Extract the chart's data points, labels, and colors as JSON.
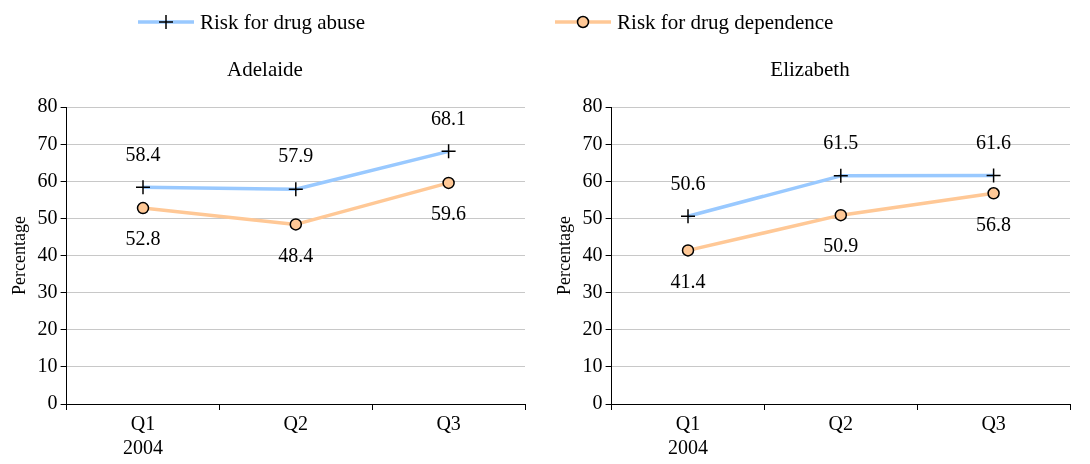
{
  "chart_data": [
    {
      "type": "line",
      "title": "Adelaide",
      "ylabel": "Percentage",
      "categories": [
        "Q1\n2004",
        "Q2",
        "Q3"
      ],
      "legend": "top",
      "ylim": [
        0,
        80
      ],
      "yticks": [
        0,
        10,
        20,
        30,
        40,
        50,
        60,
        70,
        80
      ],
      "grid": "y",
      "data_labels": true,
      "series": [
        {
          "name": "Risk for drug abuse",
          "color": "#99c9ff",
          "marker": "cross",
          "values": [
            58.4,
            57.9,
            68.1
          ]
        },
        {
          "name": "Risk for drug dependence",
          "color": "#ffc896",
          "marker": "circle",
          "values": [
            52.8,
            48.4,
            59.6
          ]
        }
      ]
    },
    {
      "type": "line",
      "title": "Elizabeth",
      "ylabel": "Percentage",
      "categories": [
        "Q1\n2004",
        "Q2",
        "Q3"
      ],
      "ylim": [
        0,
        80
      ],
      "yticks": [
        0,
        10,
        20,
        30,
        40,
        50,
        60,
        70,
        80
      ],
      "grid": "y",
      "data_labels": true,
      "series": [
        {
          "color": "#99c9ff",
          "marker": "cross",
          "values": [
            50.6,
            61.5,
            61.6
          ]
        },
        {
          "color": "#ffc896",
          "marker": "circle",
          "values": [
            41.4,
            50.9,
            56.8
          ]
        }
      ]
    }
  ]
}
